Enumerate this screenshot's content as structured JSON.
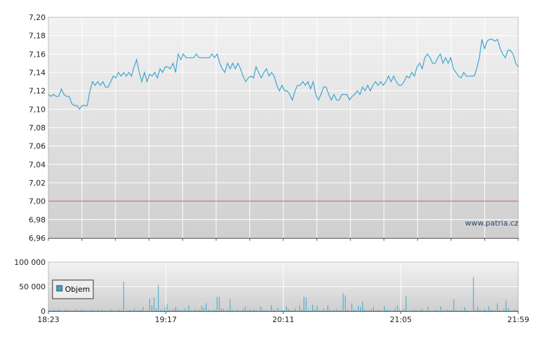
{
  "watermark": "www.patria.cz",
  "chart_data": [
    {
      "type": "line",
      "title": "",
      "xlabel": "",
      "ylabel": "",
      "ylim": [
        6.96,
        7.2
      ],
      "y_ticks": [
        "7,20",
        "7,18",
        "7,16",
        "7,14",
        "7,12",
        "7,10",
        "7,08",
        "7,06",
        "7,04",
        "7,02",
        "7,00",
        "6,98",
        "6,96"
      ],
      "reference_line": {
        "value": 7.0,
        "color": "#e05050"
      },
      "grid": true,
      "series_color": "#3aa6d0",
      "series": [
        {
          "values": [
            7.116,
            7.114,
            7.116,
            7.114,
            7.114,
            7.122,
            7.116,
            7.114,
            7.114,
            7.106,
            7.104,
            7.104,
            7.1,
            7.104,
            7.104,
            7.104,
            7.12,
            7.13,
            7.126,
            7.13,
            7.126,
            7.13,
            7.124,
            7.124,
            7.13,
            7.136,
            7.134,
            7.14,
            7.136,
            7.14,
            7.136,
            7.14,
            7.136,
            7.146,
            7.154,
            7.14,
            7.13,
            7.14,
            7.13,
            7.138,
            7.136,
            7.14,
            7.134,
            7.144,
            7.14,
            7.146,
            7.146,
            7.144,
            7.15,
            7.14,
            7.16,
            7.154,
            7.16,
            7.156,
            7.156,
            7.156,
            7.156,
            7.16,
            7.156,
            7.156,
            7.156,
            7.156,
            7.156,
            7.16,
            7.156,
            7.16,
            7.15,
            7.144,
            7.14,
            7.15,
            7.144,
            7.15,
            7.144,
            7.15,
            7.144,
            7.136,
            7.13,
            7.134,
            7.136,
            7.134,
            7.146,
            7.14,
            7.134,
            7.14,
            7.144,
            7.136,
            7.14,
            7.136,
            7.126,
            7.12,
            7.126,
            7.12,
            7.12,
            7.116,
            7.11,
            7.12,
            7.126,
            7.126,
            7.13,
            7.126,
            7.13,
            7.122,
            7.13,
            7.116,
            7.11,
            7.116,
            7.124,
            7.124,
            7.116,
            7.11,
            7.116,
            7.11,
            7.11,
            7.116,
            7.116,
            7.116,
            7.11,
            7.114,
            7.116,
            7.12,
            7.116,
            7.124,
            7.12,
            7.126,
            7.12,
            7.126,
            7.13,
            7.126,
            7.13,
            7.126,
            7.13,
            7.136,
            7.13,
            7.136,
            7.13,
            7.126,
            7.126,
            7.13,
            7.136,
            7.134,
            7.14,
            7.136,
            7.146,
            7.15,
            7.144,
            7.156,
            7.16,
            7.156,
            7.15,
            7.15,
            7.156,
            7.16,
            7.15,
            7.156,
            7.15,
            7.156,
            7.144,
            7.14,
            7.136,
            7.134,
            7.14,
            7.136,
            7.136,
            7.136,
            7.136,
            7.144,
            7.156,
            7.176,
            7.166,
            7.174,
            7.176,
            7.176,
            7.174,
            7.176,
            7.166,
            7.16,
            7.156,
            7.164,
            7.164,
            7.16,
            7.15,
            7.146
          ]
        }
      ]
    },
    {
      "type": "bar",
      "title": "",
      "xlabel": "",
      "ylabel": "",
      "ylim": [
        0,
        100000
      ],
      "y_ticks": [
        "100 000",
        "50 000",
        "0"
      ],
      "x_ticks": [
        "18:23",
        "19:17",
        "20:11",
        "21:05",
        "21:59"
      ],
      "legend": {
        "label": "Objem",
        "position": "left"
      },
      "series_color": "#3aa6d0",
      "values": [
        2000,
        1000,
        3000,
        1500,
        4000,
        2000,
        1000,
        2500,
        3000,
        1500,
        1000,
        2000,
        4000,
        1000,
        2500,
        3000,
        1500,
        2000,
        1000,
        3500,
        2000,
        1000,
        2500,
        1000,
        3000,
        2000,
        1500,
        1000,
        4000,
        2000,
        1000,
        1500,
        3000,
        2000,
        60000,
        1000,
        2000,
        3000,
        1500,
        5000,
        1000,
        2000,
        3000,
        8000,
        1500,
        2000,
        26000,
        12000,
        28000,
        5000,
        53000,
        3000,
        2000,
        8000,
        14000,
        3000,
        2000,
        4000,
        9000,
        3000,
        2000,
        1500,
        5000,
        3000,
        11000,
        2000,
        1000,
        4000,
        1500,
        3000,
        11000,
        7000,
        16000,
        3000,
        1500,
        2000,
        2500,
        29000,
        29000,
        6000,
        4000,
        1000,
        3000,
        24000,
        2000,
        1000,
        3000,
        2000,
        1500,
        4000,
        9000,
        2000,
        3000,
        1500,
        4000,
        2000,
        1000,
        9000,
        3000,
        1500,
        2000,
        1000,
        12000,
        3000,
        2000,
        6000,
        1000,
        3000,
        2000,
        9000,
        4000,
        1500,
        2000,
        5000,
        1000,
        11000,
        3000,
        29000,
        28000,
        2000,
        1000,
        13000,
        4000,
        11000,
        2000,
        1500,
        5000,
        2000,
        12000,
        3000,
        1000,
        2000,
        4000,
        1500,
        2000,
        36000,
        32000,
        3000,
        1000,
        16000,
        3000,
        2000,
        11000,
        8000,
        20000,
        3000,
        1500,
        2000,
        4000,
        8000,
        1000,
        3000,
        2500,
        1000,
        10000,
        3000,
        2000,
        1500,
        1000,
        5000,
        11000,
        3000,
        2000,
        4000,
        30000,
        1000,
        2000,
        1500,
        3000,
        2000,
        1000,
        4000,
        2500,
        1000,
        9000,
        2000,
        1000,
        3000,
        2000,
        1500,
        10000,
        1000,
        2500,
        3000,
        1500,
        2000,
        24000,
        3000,
        1000,
        2000,
        1500,
        8000,
        2000,
        1000,
        1000,
        69000,
        2000,
        9000,
        3000,
        1000,
        4000,
        2000,
        10000,
        3000,
        2000,
        1500,
        16000,
        2000,
        1000,
        4000,
        22000,
        6000,
        2000,
        1000,
        3000,
        2000
      ]
    }
  ]
}
